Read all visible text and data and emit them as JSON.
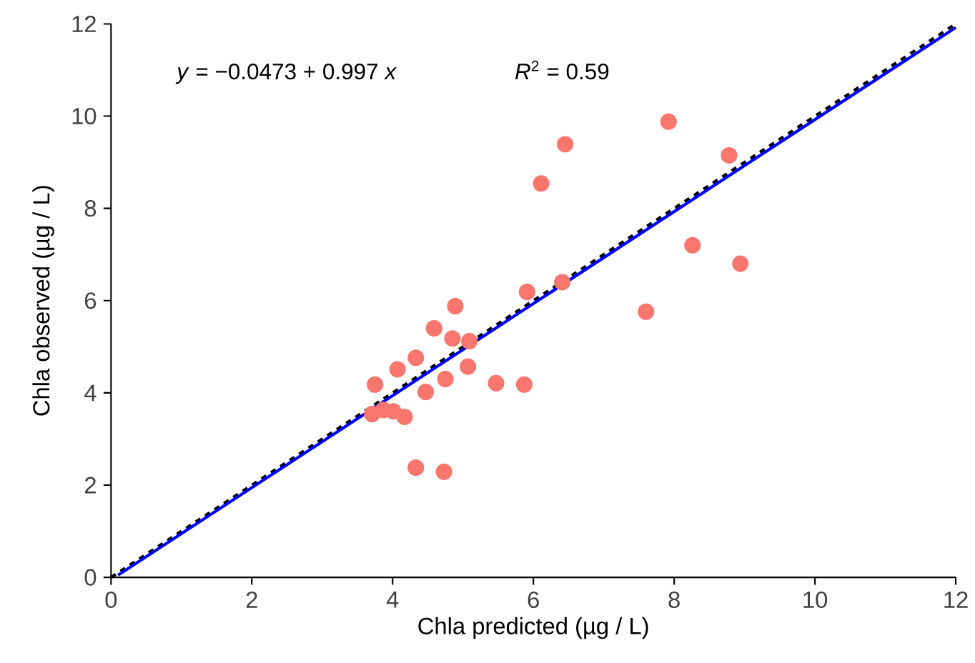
{
  "chart_data": {
    "type": "scatter",
    "xlabel": "Chla predicted (µg / L)",
    "ylabel": "Chla observed (µg / L)",
    "xlim": [
      0,
      12
    ],
    "ylim": [
      0,
      12
    ],
    "xticks": [
      0,
      2,
      4,
      6,
      8,
      10,
      12
    ],
    "yticks": [
      0,
      2,
      4,
      6,
      8,
      10,
      12
    ],
    "annotations": [
      "*y* = −0.0473 + 0.997 *x*",
      "*R*$^{2}$ = 0.59"
    ],
    "series": [
      {
        "type": "line",
        "color": "#000000",
        "line_style": "dashed",
        "marker": "none",
        "x": [
          0,
          12
        ],
        "values": [
          0,
          12
        ]
      },
      {
        "type": "line",
        "color": "#0000ff",
        "line_style": "solid",
        "marker": "none",
        "x": [
          0.1,
          12
        ],
        "values": [
          0.05,
          11.92
        ]
      },
      {
        "type": "scatter",
        "color": "#f8766d",
        "marker": "circle",
        "x": [
          3.71,
          3.87,
          4.01,
          4.17,
          3.75,
          4.07,
          4.33,
          4.59,
          4.85,
          4.89,
          5.09,
          5.07,
          4.75,
          4.47,
          5.47,
          5.87,
          4.33,
          4.73,
          5.91,
          7.92,
          8.78,
          8.26,
          8.94,
          7.6,
          6.11,
          6.45,
          6.41
        ],
        "values": [
          3.54,
          3.63,
          3.6,
          3.48,
          4.18,
          4.51,
          4.76,
          5.4,
          5.18,
          5.88,
          5.12,
          4.57,
          4.3,
          4.02,
          4.21,
          4.18,
          2.38,
          2.29,
          6.19,
          9.88,
          9.15,
          7.2,
          6.8,
          5.76,
          8.54,
          9.39,
          6.4
        ]
      }
    ]
  }
}
